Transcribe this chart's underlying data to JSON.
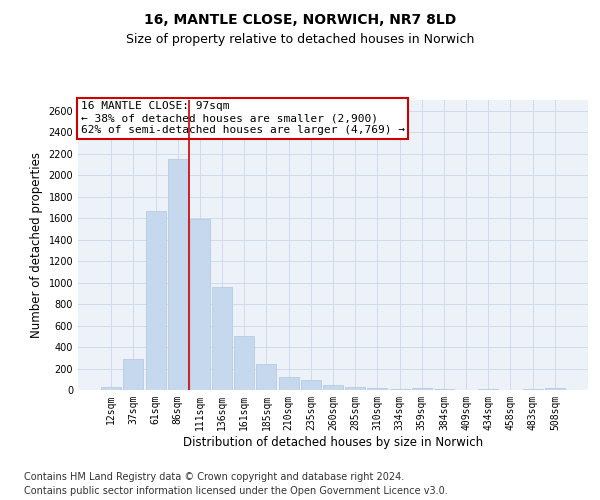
{
  "title1": "16, MANTLE CLOSE, NORWICH, NR7 8LD",
  "title2": "Size of property relative to detached houses in Norwich",
  "xlabel": "Distribution of detached houses by size in Norwich",
  "ylabel": "Number of detached properties",
  "categories": [
    "12sqm",
    "37sqm",
    "61sqm",
    "86sqm",
    "111sqm",
    "136sqm",
    "161sqm",
    "185sqm",
    "210sqm",
    "235sqm",
    "260sqm",
    "285sqm",
    "310sqm",
    "334sqm",
    "359sqm",
    "384sqm",
    "409sqm",
    "434sqm",
    "458sqm",
    "483sqm",
    "508sqm"
  ],
  "values": [
    30,
    290,
    1670,
    2150,
    1590,
    960,
    500,
    240,
    120,
    95,
    45,
    30,
    15,
    5,
    18,
    5,
    0,
    5,
    0,
    5,
    20
  ],
  "bar_color": "#c5d8ed",
  "bar_edge_color": "#b0c8e0",
  "grid_color": "#d0daeb",
  "annotation_box_color": "#cc0000",
  "property_line_color": "#cc0000",
  "property_bin_index": 3,
  "annotation_line1": "16 MANTLE CLOSE: 97sqm",
  "annotation_line2": "← 38% of detached houses are smaller (2,900)",
  "annotation_line3": "62% of semi-detached houses are larger (4,769) →",
  "ylim": [
    0,
    2700
  ],
  "yticks": [
    0,
    200,
    400,
    600,
    800,
    1000,
    1200,
    1400,
    1600,
    1800,
    2000,
    2200,
    2400,
    2600
  ],
  "footer1": "Contains HM Land Registry data © Crown copyright and database right 2024.",
  "footer2": "Contains public sector information licensed under the Open Government Licence v3.0.",
  "title1_fontsize": 10,
  "title2_fontsize": 9,
  "annotation_fontsize": 8,
  "tick_fontsize": 7,
  "xlabel_fontsize": 8.5,
  "ylabel_fontsize": 8.5,
  "footer_fontsize": 7,
  "background_color": "#edf2f9"
}
